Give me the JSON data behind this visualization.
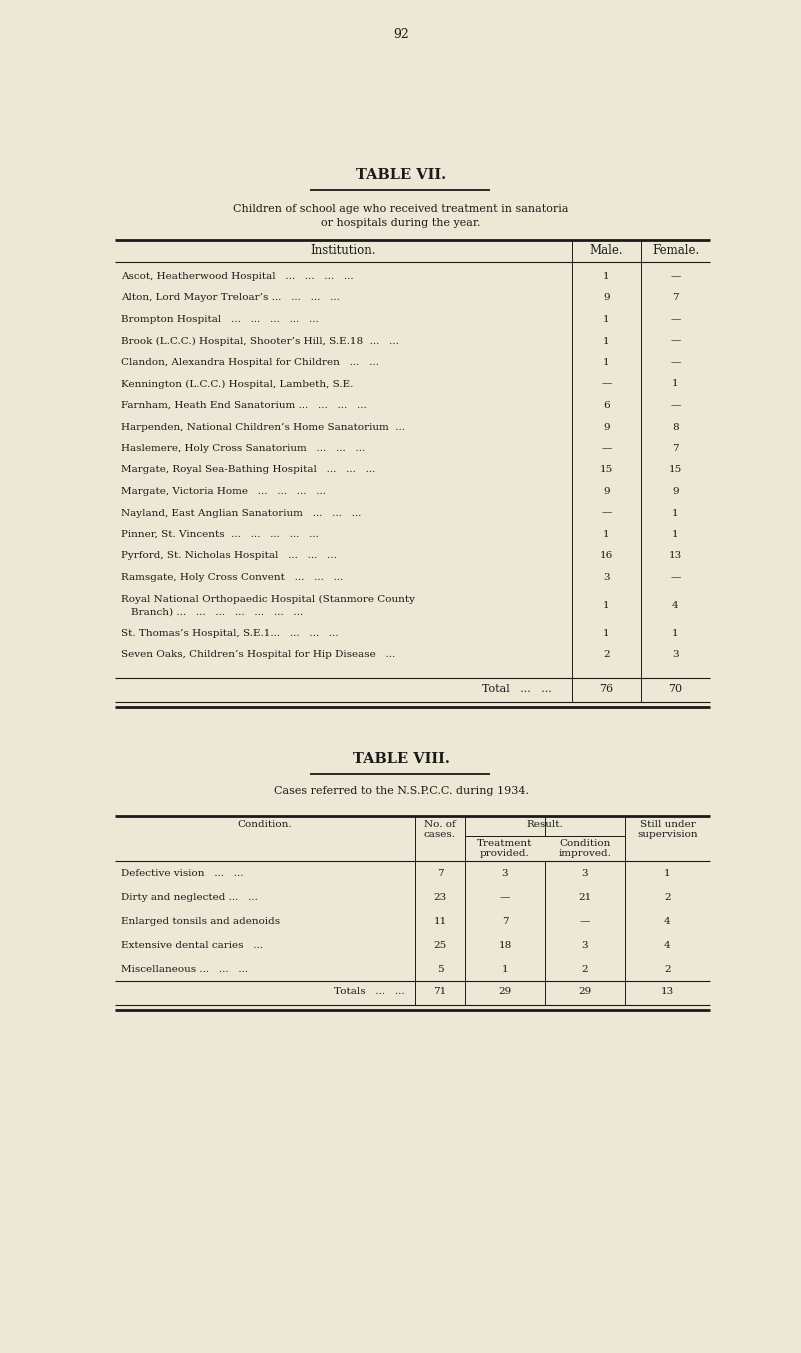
{
  "page_number": "92",
  "bg_color": "#ede8d5",
  "text_color": "#1a1a1a",
  "table7": {
    "title": "TABLE VII.",
    "subtitle_line1": "Children of school age who received treatment in sanatoria",
    "subtitle_line2": "or hospitals during the year.",
    "rows": [
      [
        "Ascot, Heatherwood Hospital   ...   ...   ...   ...",
        "1",
        "—"
      ],
      [
        "Alton, Lord Mayor Treloar’s ...   ...   ...   ...",
        "9",
        "7"
      ],
      [
        "Brompton Hospital   ...   ...   ...   ...   ...",
        "1",
        "—"
      ],
      [
        "Brook (L.C.C.) Hospital, Shooter’s Hill, S.E.18  ...   ...",
        "1",
        "—"
      ],
      [
        "Clandon, Alexandra Hospital for Children   ...   ...",
        "1",
        "—"
      ],
      [
        "Kennington (L.C.C.) Hospital, Lambeth, S.E.",
        "—",
        "1"
      ],
      [
        "Farnham, Heath End Sanatorium ...   ...   ...   ...",
        "6",
        "—"
      ],
      [
        "Harpenden, National Children’s Home Sanatorium  ...",
        "9",
        "8"
      ],
      [
        "Haslemere, Holy Cross Sanatorium   ...   ...   ...",
        "—",
        "7"
      ],
      [
        "Margate, Royal Sea-Bathing Hospital   ...   ...   ...",
        "15",
        "15"
      ],
      [
        "Margate, Victoria Home   ...   ...   ...   ...",
        "9",
        "9"
      ],
      [
        "Nayland, East Anglian Sanatorium   ...   ...   ...",
        "—",
        "1"
      ],
      [
        "Pinner, St. Vincents  ...   ...   ...   ...   ...",
        "1",
        "1"
      ],
      [
        "Pyrford, St. Nicholas Hospital   ...   ...   ...",
        "16",
        "13"
      ],
      [
        "Ramsgate, Holy Cross Convent   ...   ...   ...",
        "3",
        "—"
      ],
      [
        "Royal National Orthopaedic Hospital (Stanmore County\n   Branch) ...   ...   ...   ...   ...   ...   ...",
        "1",
        "4"
      ],
      [
        "St. Thomas’s Hospital, S.E.1...   ...   ...   ...",
        "1",
        "1"
      ],
      [
        "Seven Oaks, Children’s Hospital for Hip Disease   ...",
        "2",
        "3"
      ]
    ],
    "total_row": [
      "Total   ...   ...",
      "76",
      "70"
    ]
  },
  "table8": {
    "title": "TABLE VIII.",
    "subtitle": "Cases referred to the N.S.P.C.C. during 1934.",
    "rows": [
      [
        "Defective vision   ...   ...",
        "7",
        "3",
        "3",
        "1"
      ],
      [
        "Dirty and neglected ...   ...",
        "23",
        "—",
        "21",
        "2"
      ],
      [
        "Enlarged tonsils and adenoids",
        "11",
        "7",
        "—",
        "4"
      ],
      [
        "Extensive dental caries   ...",
        "25",
        "18",
        "3",
        "4"
      ],
      [
        "Miscellaneous ...   ...   ...",
        "5",
        "1",
        "2",
        "2"
      ]
    ],
    "total_row": [
      "Totals   ...   ...",
      "71",
      "29",
      "29",
      "13"
    ]
  }
}
